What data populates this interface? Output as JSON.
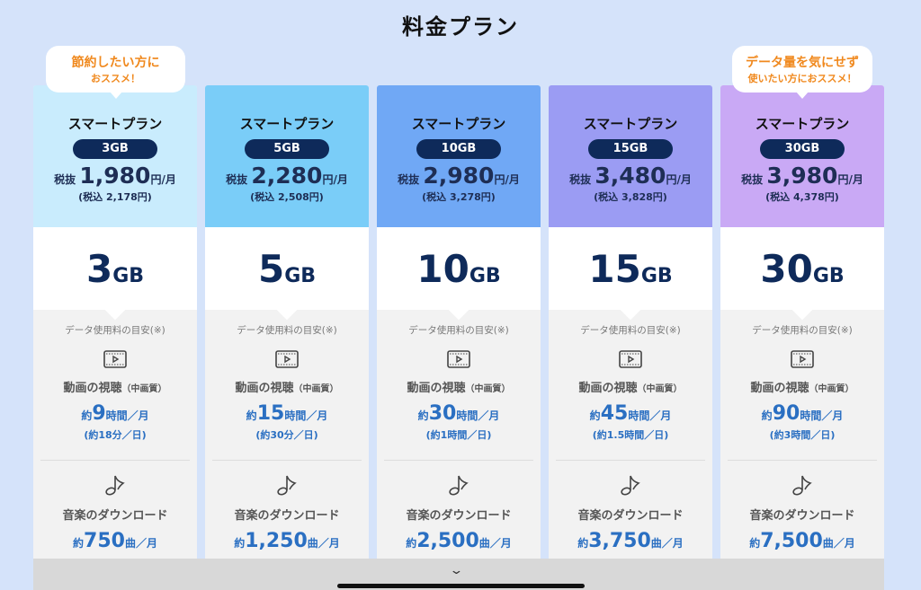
{
  "title": "料金プラン",
  "bubbles": [
    {
      "line1": "節約したい方に",
      "line2": "おススメ！"
    },
    {
      "line1": "データ量を気にせず",
      "line2": "使いたい方におススメ！"
    }
  ],
  "labels": {
    "plan_name": "スマートプラン",
    "tax_ex": "税抜",
    "yen_month": "円/月",
    "note": "データ使用料の目安(※)",
    "video": "動画の視聴",
    "video_quality": "（中画質）",
    "music": "音楽のダウンロード",
    "approx": "約",
    "hours_month": "時間／月",
    "songs_month": "曲／月",
    "gb_unit": "GB"
  },
  "colors": [
    "#c9ecfd",
    "#7acdf8",
    "#70a8f5",
    "#9b9cf3",
    "#c9a9f5"
  ],
  "plans": [
    {
      "badge": "3GB",
      "gb": "3",
      "price": "1,980",
      "tax_in": "(税込 2,178円)",
      "video_hours": "9",
      "video_day": "(約18分／日)",
      "songs": "750"
    },
    {
      "badge": "5GB",
      "gb": "5",
      "price": "2,280",
      "tax_in": "(税込 2,508円)",
      "video_hours": "15",
      "video_day": "(約30分／日)",
      "songs": "1,250"
    },
    {
      "badge": "10GB",
      "gb": "10",
      "price": "2,980",
      "tax_in": "(税込 3,278円)",
      "video_hours": "30",
      "video_day": "(約1時間／日)",
      "songs": "2,500"
    },
    {
      "badge": "15GB",
      "gb": "15",
      "price": "3,480",
      "tax_in": "(税込 3,828円)",
      "video_hours": "45",
      "video_day": "(約1.5時間／日)",
      "songs": "3,750"
    },
    {
      "badge": "30GB",
      "gb": "30",
      "price": "3,980",
      "tax_in": "(税込 4,378円)",
      "video_hours": "90",
      "video_day": "(約3時間／日)",
      "songs": "7,500"
    }
  ],
  "expand_icon": "chevron-down-icon"
}
